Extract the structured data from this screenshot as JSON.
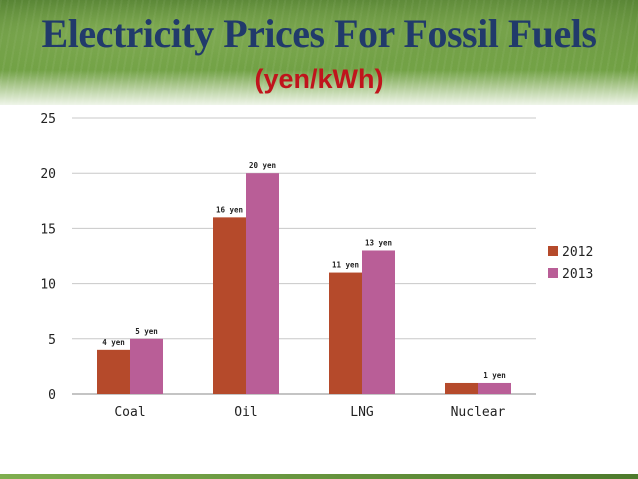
{
  "header": {
    "title": "Electricity Prices For Fossil Fuels",
    "subtitle": "(yen/kWh)"
  },
  "colors": {
    "series_2012": "#b54a2b",
    "series_2013": "#b95e97",
    "title": "#213a6b",
    "subtitle": "#c0141c"
  },
  "chart_data": {
    "type": "bar",
    "categories": [
      "Coal",
      "Oil",
      "LNG",
      "Nuclear"
    ],
    "series": [
      {
        "name": "2012",
        "values": [
          4,
          16,
          11,
          1
        ],
        "labels": [
          "4 yen",
          "16 yen",
          "11 yen",
          ""
        ]
      },
      {
        "name": "2013",
        "values": [
          5,
          20,
          13,
          1
        ],
        "labels": [
          "5 yen",
          "20 yen",
          "13 yen",
          "1 yen"
        ]
      }
    ],
    "ylim": [
      0,
      25
    ],
    "yticks": [
      0,
      5,
      10,
      15,
      20,
      25
    ],
    "grid": true,
    "legend": "right"
  }
}
